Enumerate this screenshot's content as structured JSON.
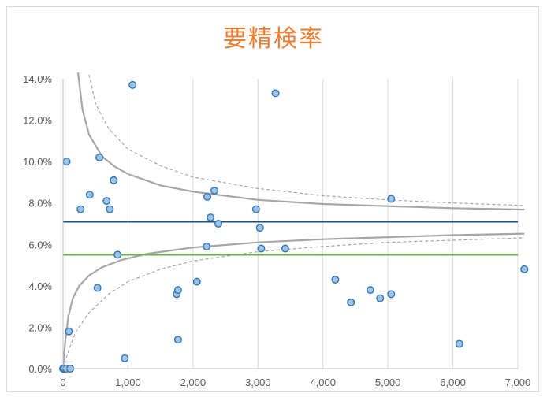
{
  "chart_data": {
    "type": "scatter",
    "title": "要精検率",
    "xlabel": "",
    "ylabel": "",
    "xlim": [
      0,
      7000
    ],
    "ylim": [
      0,
      0.14
    ],
    "x_ticks": [
      "0",
      "1,000",
      "2,000",
      "3,000",
      "4,000",
      "5,000",
      "6,000",
      "7,000"
    ],
    "y_ticks": [
      "0.0%",
      "2.0%",
      "4.0%",
      "6.0%",
      "8.0%",
      "10.0%",
      "12.0%",
      "14.0%"
    ],
    "grid": "vertical",
    "legend": "none",
    "points": [
      {
        "x": 0,
        "y": 0.0
      },
      {
        "x": 5,
        "y": 0.0
      },
      {
        "x": 10,
        "y": 0.0
      },
      {
        "x": 20,
        "y": 0.0
      },
      {
        "x": 50,
        "y": 0.0
      },
      {
        "x": 110,
        "y": 0.0
      },
      {
        "x": 55,
        "y": 0.1
      },
      {
        "x": 90,
        "y": 0.018
      },
      {
        "x": 270,
        "y": 0.077
      },
      {
        "x": 410,
        "y": 0.084
      },
      {
        "x": 530,
        "y": 0.039
      },
      {
        "x": 560,
        "y": 0.102
      },
      {
        "x": 670,
        "y": 0.081
      },
      {
        "x": 720,
        "y": 0.077
      },
      {
        "x": 780,
        "y": 0.091
      },
      {
        "x": 840,
        "y": 0.055
      },
      {
        "x": 950,
        "y": 0.005
      },
      {
        "x": 1070,
        "y": 0.137
      },
      {
        "x": 1750,
        "y": 0.036
      },
      {
        "x": 1770,
        "y": 0.038
      },
      {
        "x": 1770,
        "y": 0.014
      },
      {
        "x": 2060,
        "y": 0.042
      },
      {
        "x": 2210,
        "y": 0.059
      },
      {
        "x": 2220,
        "y": 0.083
      },
      {
        "x": 2270,
        "y": 0.073
      },
      {
        "x": 2330,
        "y": 0.086
      },
      {
        "x": 2390,
        "y": 0.07
      },
      {
        "x": 2970,
        "y": 0.077
      },
      {
        "x": 3030,
        "y": 0.068
      },
      {
        "x": 3050,
        "y": 0.058
      },
      {
        "x": 3270,
        "y": 0.133
      },
      {
        "x": 3420,
        "y": 0.058
      },
      {
        "x": 4190,
        "y": 0.043
      },
      {
        "x": 4430,
        "y": 0.032
      },
      {
        "x": 4730,
        "y": 0.038
      },
      {
        "x": 4880,
        "y": 0.034
      },
      {
        "x": 5050,
        "y": 0.082
      },
      {
        "x": 5050,
        "y": 0.036
      },
      {
        "x": 6100,
        "y": 0.012
      },
      {
        "x": 7100,
        "y": 0.048
      }
    ],
    "reference_lines": [
      {
        "kind": "mean",
        "y": 0.071,
        "color": "#1f4e79"
      },
      {
        "kind": "target",
        "y": 0.055,
        "color": "#70ad47"
      }
    ],
    "funnel": {
      "center": 0.071,
      "upper_solid": [
        [
          230,
          0.143
        ],
        [
          300,
          0.125
        ],
        [
          400,
          0.113
        ],
        [
          600,
          0.1025
        ],
        [
          800,
          0.0975
        ],
        [
          1000,
          0.094
        ],
        [
          1500,
          0.0885
        ],
        [
          2000,
          0.0855
        ],
        [
          3000,
          0.0815
        ],
        [
          4000,
          0.0795
        ],
        [
          5000,
          0.0785
        ],
        [
          6000,
          0.0775
        ],
        [
          7100,
          0.0768
        ]
      ],
      "lower_solid": [
        [
          0,
          0.0
        ],
        [
          30,
          0.012
        ],
        [
          80,
          0.025
        ],
        [
          150,
          0.034
        ],
        [
          250,
          0.04
        ],
        [
          400,
          0.045
        ],
        [
          600,
          0.049
        ],
        [
          900,
          0.0525
        ],
        [
          1300,
          0.0555
        ],
        [
          2000,
          0.0585
        ],
        [
          3000,
          0.061
        ],
        [
          4000,
          0.0625
        ],
        [
          5000,
          0.0635
        ],
        [
          6000,
          0.0645
        ],
        [
          7100,
          0.0652
        ]
      ],
      "upper_dashed": [
        [
          400,
          0.142
        ],
        [
          500,
          0.128
        ],
        [
          700,
          0.116
        ],
        [
          1000,
          0.106
        ],
        [
          1500,
          0.098
        ],
        [
          2000,
          0.0925
        ],
        [
          3000,
          0.087
        ],
        [
          4000,
          0.0835
        ],
        [
          5000,
          0.0815
        ],
        [
          6000,
          0.08
        ],
        [
          7100,
          0.0788
        ]
      ],
      "lower_dashed": [
        [
          0,
          0.0
        ],
        [
          100,
          0.01
        ],
        [
          200,
          0.018
        ],
        [
          400,
          0.027
        ],
        [
          700,
          0.036
        ],
        [
          1000,
          0.042
        ],
        [
          1500,
          0.048
        ],
        [
          2000,
          0.052
        ],
        [
          3000,
          0.0565
        ],
        [
          4000,
          0.059
        ],
        [
          5000,
          0.061
        ],
        [
          6000,
          0.062
        ],
        [
          7100,
          0.0632
        ]
      ]
    },
    "colors": {
      "title": "#ed7d31",
      "marker_fill": "#9dc3e6",
      "marker_stroke": "#2e75b6",
      "funnel": "#a6a6a6",
      "grid": "#d9d9d9"
    }
  }
}
